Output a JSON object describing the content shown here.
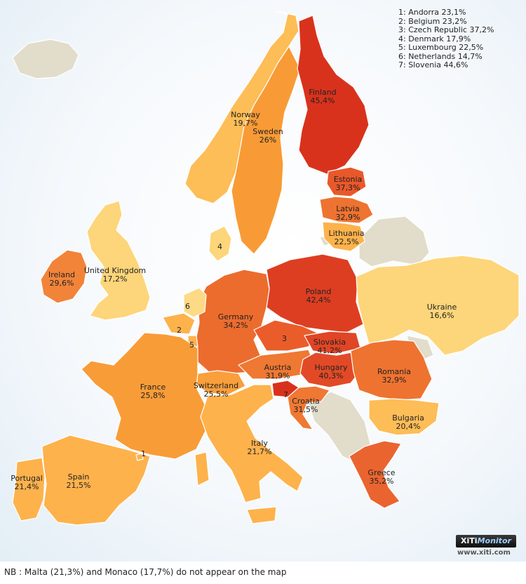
{
  "legend": [
    "1: Andorra 23,1%",
    "2: Belgium 23,2%",
    "3: Czech Republic 37,2%",
    "4: Denmark 17,9%",
    "5: Luxembourg 22,5%",
    "6: Netherlands 14,7%",
    "7: Slovenia 44,6%"
  ],
  "countries": {
    "finland": {
      "name": "Finland",
      "value": "45,4%",
      "color": "#d9321c"
    },
    "norway": {
      "name": "Norway",
      "value": "19,7%",
      "color": "#fdbd57"
    },
    "sweden": {
      "name": "Sweden",
      "value": "26%",
      "color": "#f89b36"
    },
    "estonia": {
      "name": "Estonia",
      "value": "37,3%",
      "color": "#e9582a"
    },
    "latvia": {
      "name": "Latvia",
      "value": "32,9%",
      "color": "#ee7330"
    },
    "lithuania": {
      "name": "Lithuania",
      "value": "22,5%",
      "color": "#fdb24c"
    },
    "ireland": {
      "name": "Ireland",
      "value": "29,6%",
      "color": "#f2843a"
    },
    "uk": {
      "name": "United Kingdom",
      "value": "17,2%",
      "color": "#fdd57a"
    },
    "poland": {
      "name": "Poland",
      "value": "42,4%",
      "color": "#dd3e22"
    },
    "germany": {
      "name": "Germany",
      "value": "34,2%",
      "color": "#ec6c2e"
    },
    "ukraine": {
      "name": "Ukraine",
      "value": "16,6%",
      "color": "#fdd57a"
    },
    "slovakia": {
      "name": "Slovakia",
      "value": "41,2%",
      "color": "#e04526"
    },
    "hungary": {
      "name": "Hungary",
      "value": "40,3%",
      "color": "#e24a27"
    },
    "austria": {
      "name": "Austria",
      "value": "31,9%",
      "color": "#ef7833"
    },
    "france": {
      "name": "France",
      "value": "25,8%",
      "color": "#f89c38"
    },
    "switzerland": {
      "name": "Switzerland",
      "value": "25,5%",
      "color": "#f99f3b"
    },
    "romania": {
      "name": "Romania",
      "value": "32,9%",
      "color": "#ee7330"
    },
    "croatia": {
      "name": "Croatia",
      "value": "31,5%",
      "color": "#ef7833"
    },
    "bulgaria": {
      "name": "Bulgaria",
      "value": "20,4%",
      "color": "#fdbd57"
    },
    "italy": {
      "name": "Italy",
      "value": "21,7%",
      "color": "#fdb24c"
    },
    "portugal": {
      "name": "Portugal",
      "value": "21,4%",
      "color": "#fdb24c"
    },
    "spain": {
      "name": "Spain",
      "value": "21,5%",
      "color": "#fdb24c"
    },
    "greece": {
      "name": "Greece",
      "value": "35,2%",
      "color": "#ea6430"
    }
  },
  "small_countries": {
    "andorra": {
      "number": "1",
      "color": "#fdb24c"
    },
    "belgium": {
      "number": "2",
      "color": "#fdb24c"
    },
    "czech": {
      "number": "3",
      "color": "#ea5d2a"
    },
    "denmark": {
      "number": "4",
      "color": "#fdd57a"
    },
    "luxembourg": {
      "number": "5",
      "color": "#fdb24c"
    },
    "netherlands": {
      "number": "6",
      "color": "#fdda86"
    },
    "slovenia": {
      "number": "7",
      "color": "#d9321c"
    }
  },
  "no_data_color": "#e2dccb",
  "logo": {
    "prefix": "XiTi",
    "accent": "Monitor"
  },
  "logo_url": "www.xiti.com",
  "footnote": "NB : Malta (21,3%) and Monaco (17,7%) do not appear on the map"
}
